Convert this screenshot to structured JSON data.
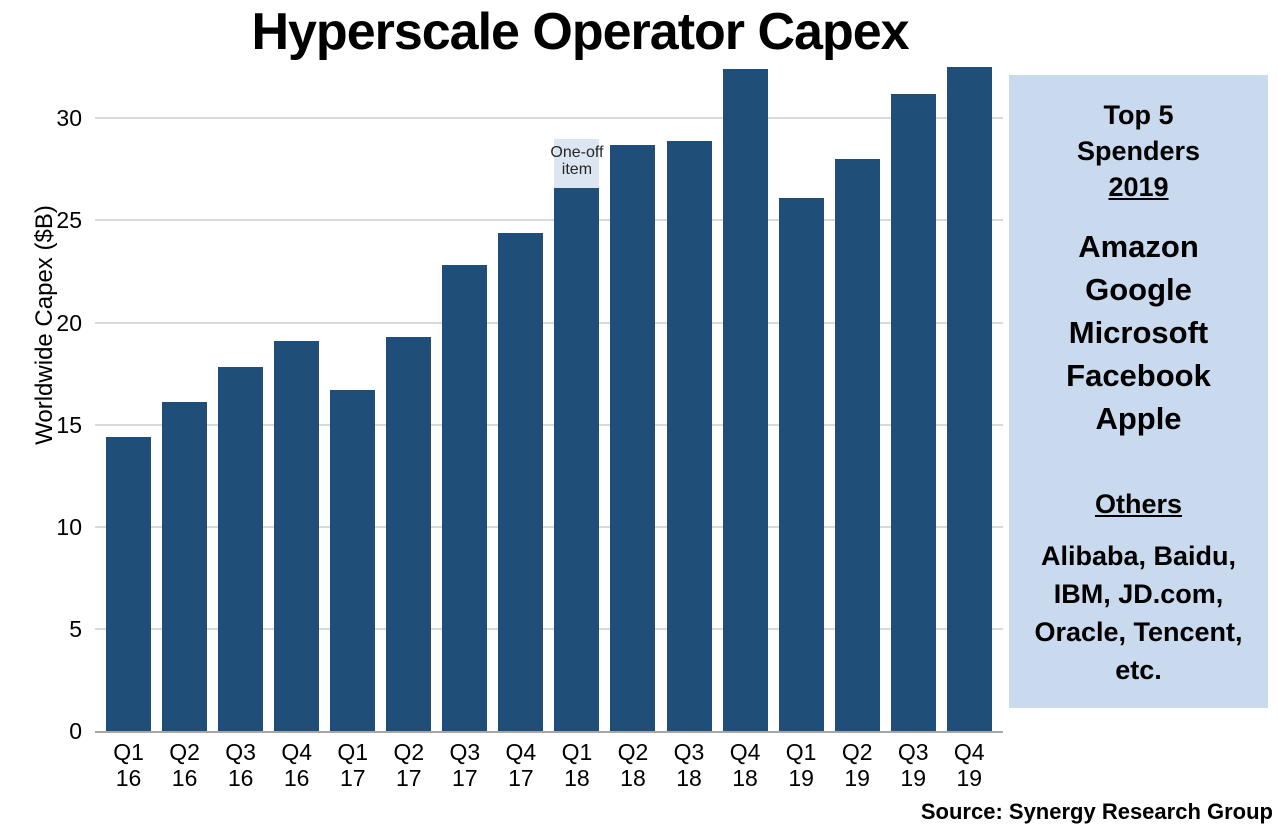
{
  "source": "Source: Synergy Research Group",
  "chart_data": {
    "type": "bar",
    "title": "Hyperscale Operator Capex",
    "xlabel": "",
    "ylabel": "Worldwide Capex ($B)",
    "ylim": [
      0,
      33
    ],
    "yticks": [
      0,
      5,
      10,
      15,
      20,
      25,
      30
    ],
    "grid": true,
    "legend": "none",
    "bar_color": "#1F4E79",
    "gridline_color": "#D9D9D9",
    "axis_line_color": "#A6A6A6",
    "categories": [
      "Q1 16",
      "Q2 16",
      "Q3 16",
      "Q4 16",
      "Q1 17",
      "Q2 17",
      "Q3 17",
      "Q4 17",
      "Q1 18",
      "Q2 18",
      "Q3 18",
      "Q4 18",
      "Q1 19",
      "Q2 19",
      "Q3 19",
      "Q4 19"
    ],
    "values": [
      14.4,
      16.1,
      17.8,
      19.1,
      16.7,
      19.3,
      22.8,
      24.4,
      26.6,
      28.7,
      28.9,
      32.4,
      26.1,
      28.0,
      31.2,
      32.5
    ],
    "annotation": {
      "label_lines": [
        "One-off",
        "item"
      ],
      "category": "Q1 18",
      "index": 8,
      "from": 26.6,
      "to": 29.0,
      "color": "#DCE6F2"
    }
  },
  "sidebar": {
    "background": "#C9D9EE",
    "top5_heading_lines": [
      "Top 5",
      "Spenders"
    ],
    "top5_year": "2019",
    "top5_companies": [
      "Amazon",
      "Google",
      "Microsoft",
      "Facebook",
      "Apple"
    ],
    "others_heading": "Others",
    "others_lines": [
      "Alibaba, Baidu,",
      "IBM, JD.com,",
      "Oracle, Tencent,",
      "etc."
    ]
  }
}
